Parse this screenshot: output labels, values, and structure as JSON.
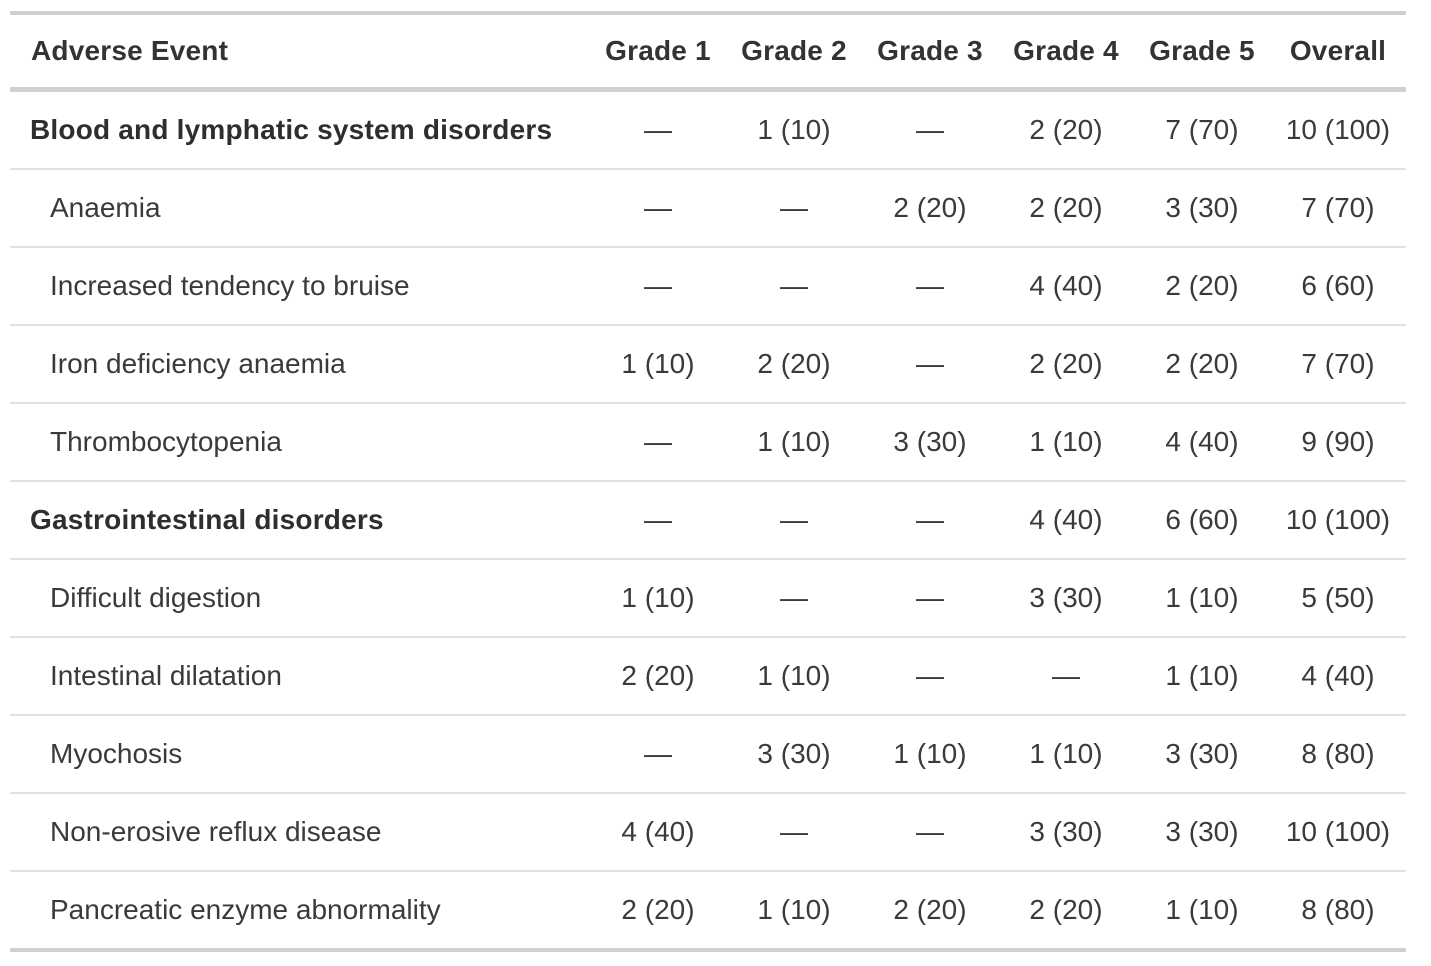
{
  "chart_data": {
    "type": "table",
    "columns": [
      "Adverse Event",
      "Grade 1",
      "Grade 2",
      "Grade 3",
      "Grade 4",
      "Grade 5",
      "Overall"
    ],
    "rows": [
      {
        "label": "Blood and lymphatic system disorders",
        "group": true,
        "values": [
          "—",
          "1 (10)",
          "—",
          "2 (20)",
          "7 (70)",
          "10 (100)"
        ]
      },
      {
        "label": "Anaemia",
        "group": false,
        "values": [
          "—",
          "—",
          "2 (20)",
          "2 (20)",
          "3 (30)",
          "7 (70)"
        ]
      },
      {
        "label": "Increased tendency to bruise",
        "group": false,
        "values": [
          "—",
          "—",
          "—",
          "4 (40)",
          "2 (20)",
          "6 (60)"
        ]
      },
      {
        "label": "Iron deficiency anaemia",
        "group": false,
        "values": [
          "1 (10)",
          "2 (20)",
          "—",
          "2 (20)",
          "2 (20)",
          "7 (70)"
        ]
      },
      {
        "label": "Thrombocytopenia",
        "group": false,
        "values": [
          "—",
          "1 (10)",
          "3 (30)",
          "1 (10)",
          "4 (40)",
          "9 (90)"
        ]
      },
      {
        "label": "Gastrointestinal disorders",
        "group": true,
        "values": [
          "—",
          "—",
          "—",
          "4 (40)",
          "6 (60)",
          "10 (100)"
        ]
      },
      {
        "label": "Difficult digestion",
        "group": false,
        "values": [
          "1 (10)",
          "—",
          "—",
          "3 (30)",
          "1 (10)",
          "5 (50)"
        ]
      },
      {
        "label": "Intestinal dilatation",
        "group": false,
        "values": [
          "2 (20)",
          "1 (10)",
          "—",
          "—",
          "1 (10)",
          "4 (40)"
        ]
      },
      {
        "label": "Myochosis",
        "group": false,
        "values": [
          "—",
          "3 (30)",
          "1 (10)",
          "1 (10)",
          "3 (30)",
          "8 (80)"
        ]
      },
      {
        "label": "Non-erosive reflux disease",
        "group": false,
        "values": [
          "4 (40)",
          "—",
          "—",
          "3 (30)",
          "3 (30)",
          "10 (100)"
        ]
      },
      {
        "label": "Pancreatic enzyme abnormality",
        "group": false,
        "values": [
          "2 (20)",
          "1 (10)",
          "2 (20)",
          "2 (20)",
          "1 (10)",
          "8 (80)"
        ]
      }
    ],
    "layout_hints": {
      "grid": "horizontal-dividers-only",
      "first_column_align": "left",
      "value_columns_align": "center",
      "group_rows_bold_label_only": true
    },
    "colors": {
      "text": "#3a3a3a",
      "bold_text": "#2e2e2e",
      "outer_border": "#cfcfcf",
      "header_border": "#d0d0d0",
      "row_divider": "#e0e0e0",
      "background": "#ffffff"
    }
  }
}
